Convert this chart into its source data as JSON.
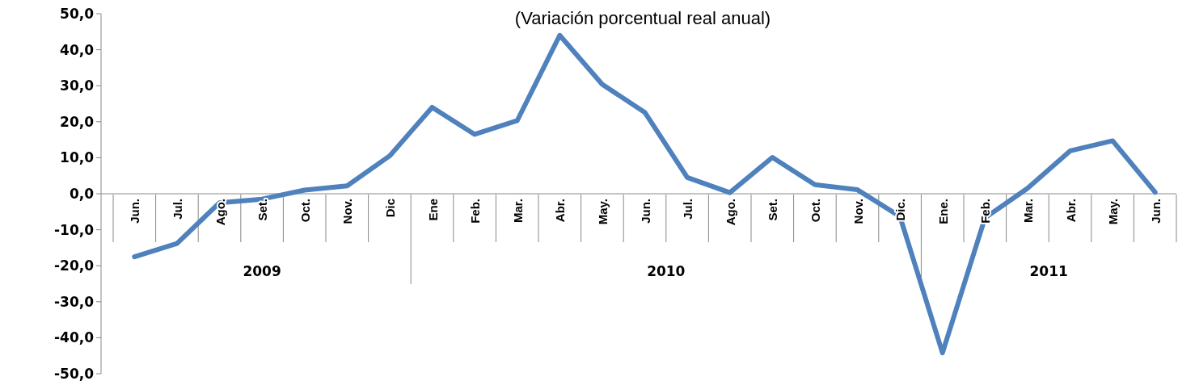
{
  "chart_data": {
    "type": "line",
    "title": "(Variación porcentual real anual)",
    "categories": [
      "Jun.",
      "Jul.",
      "Ago.",
      "Set.",
      "Oct.",
      "Nov.",
      "Dic",
      "Ene",
      "Feb.",
      "Mar.",
      "Abr.",
      "May.",
      "Jun.",
      "Jul.",
      "Ago.",
      "Set.",
      "Oct.",
      "Nov.",
      "Dic.",
      "Ene.",
      "Feb.",
      "Mar.",
      "Abr.",
      "May.",
      "Jun."
    ],
    "series": [
      {
        "color": "#4f81bd",
        "values": [
          -17.5,
          -13.8,
          -2.5,
          -1.5,
          1.0,
          2.2,
          10.5,
          24.0,
          16.5,
          20.3,
          44.0,
          30.4,
          22.6,
          4.5,
          0.3,
          10.1,
          2.5,
          1.1,
          -6.3,
          -44.2,
          -6.7,
          1.5,
          11.9,
          14.7,
          0.4
        ]
      }
    ],
    "ylim": [
      -50,
      50
    ],
    "yticks": [
      {
        "value": -50,
        "label": "-50,0"
      },
      {
        "value": -40,
        "label": "-40,0"
      },
      {
        "value": -30,
        "label": "-30,0"
      },
      {
        "value": -20,
        "label": "-20,0"
      },
      {
        "value": -10,
        "label": "-10,0"
      },
      {
        "value": 0,
        "label": "0,0"
      },
      {
        "value": 10,
        "label": "10,0"
      },
      {
        "value": 20,
        "label": "20,0"
      },
      {
        "value": 30,
        "label": "30,0"
      },
      {
        "value": 40,
        "label": "40,0"
      },
      {
        "value": 50,
        "label": "50,0"
      }
    ],
    "annotations": [
      "2009",
      "2010",
      "2011"
    ],
    "marker": "none",
    "line_style": "solid"
  }
}
